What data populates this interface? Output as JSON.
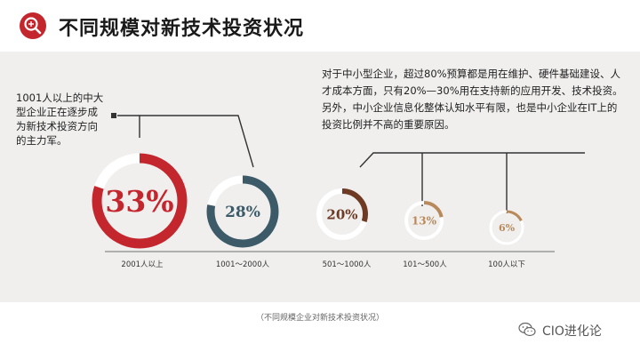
{
  "header": {
    "title": "不同规模对新技术投资状况",
    "icon": "search-magnifier-icon"
  },
  "notes": {
    "left": "1001人以上的中大型企业正在逐步成为新技术投资方向的主力军。",
    "right": "对于中小型企业，超过80%预算都是用在维护、硬件基础建设、人才成本方面，只有20%—30%用在支持新的应用开发、技术投资。另外，中小企业信息化整体认知水平有限，也是中小企业在IT上的投资比例并不高的重要原因。"
  },
  "caption": "（不同规模企业对新技术投资状况）",
  "brand": {
    "name": "CIO进化论",
    "icon": "wechat-icon"
  },
  "colors": {
    "red": "#c4262e",
    "teal": "#3c5a68",
    "brown": "#6e3a24",
    "tan": "#b8895a",
    "track": "#ffffff"
  },
  "chart_data": {
    "type": "donut",
    "categories": [
      "2001人以上",
      "1001～2000人",
      "501～1000人",
      "101～500人",
      "100人以下"
    ],
    "values": [
      33,
      28,
      20,
      13,
      6
    ],
    "value_labels": [
      "33%",
      "28%",
      "20%",
      "13%",
      "6%"
    ],
    "fill_fraction": [
      0.8,
      0.78,
      0.3,
      0.22,
      0.18
    ]
  }
}
